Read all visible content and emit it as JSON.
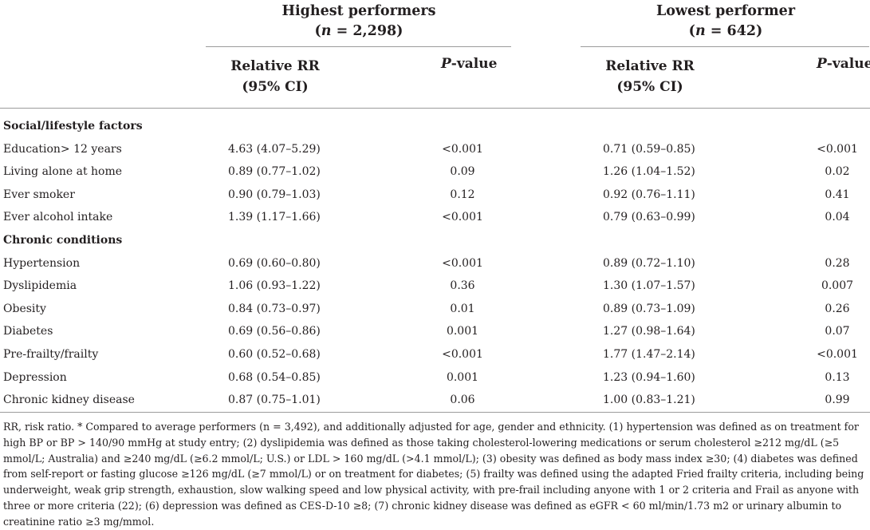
{
  "groups": [
    {
      "line1": "Highest performers",
      "n_pre": "(",
      "n_var": "n",
      "n_post": " = 2,298)"
    },
    {
      "line1": "Lowest performer",
      "n_pre": "(",
      "n_var": "n",
      "n_post": " = 642)"
    }
  ],
  "subheaders": {
    "rr_line1": "Relative RR",
    "rr_line2": "(95% CI)",
    "p_italic": "P",
    "p_rest": "-value"
  },
  "sections": [
    {
      "title": "Social/lifestyle factors",
      "rows": [
        {
          "label": "Education> 12 years",
          "hp_rr": "4.63 (4.07–5.29)",
          "hp_p": "<0.001",
          "lp_rr": "0.71 (0.59–0.85)",
          "lp_p": "<0.001"
        },
        {
          "label": "Living alone at home",
          "hp_rr": "0.89 (0.77–1.02)",
          "hp_p": "0.09",
          "lp_rr": "1.26 (1.04–1.52)",
          "lp_p": "0.02"
        },
        {
          "label": "Ever smoker",
          "hp_rr": "0.90 (0.79–1.03)",
          "hp_p": "0.12",
          "lp_rr": "0.92 (0.76–1.11)",
          "lp_p": "0.41"
        },
        {
          "label": "Ever alcohol intake",
          "hp_rr": "1.39 (1.17–1.66)",
          "hp_p": "<0.001",
          "lp_rr": "0.79 (0.63–0.99)",
          "lp_p": "0.04"
        }
      ]
    },
    {
      "title": "Chronic conditions",
      "rows": [
        {
          "label": "Hypertension",
          "hp_rr": "0.69 (0.60–0.80)",
          "hp_p": "<0.001",
          "lp_rr": "0.89 (0.72–1.10)",
          "lp_p": "0.28"
        },
        {
          "label": "Dyslipidemia",
          "hp_rr": "1.06 (0.93–1.22)",
          "hp_p": "0.36",
          "lp_rr": "1.30 (1.07–1.57)",
          "lp_p": "0.007"
        },
        {
          "label": "Obesity",
          "hp_rr": "0.84 (0.73–0.97)",
          "hp_p": "0.01",
          "lp_rr": "0.89 (0.73–1.09)",
          "lp_p": "0.26"
        },
        {
          "label": "Diabetes",
          "hp_rr": "0.69 (0.56–0.86)",
          "hp_p": "0.001",
          "lp_rr": "1.27 (0.98–1.64)",
          "lp_p": "0.07"
        },
        {
          "label": "Pre-frailty/frailty",
          "hp_rr": "0.60 (0.52–0.68)",
          "hp_p": "<0.001",
          "lp_rr": "1.77 (1.47–2.14)",
          "lp_p": "<0.001"
        },
        {
          "label": "Depression",
          "hp_rr": "0.68 (0.54–0.85)",
          "hp_p": "0.001",
          "lp_rr": "1.23 (0.94–1.60)",
          "lp_p": "0.13"
        },
        {
          "label": "Chronic kidney disease",
          "hp_rr": "0.87 (0.75–1.01)",
          "hp_p": "0.06",
          "lp_rr": "1.00 (0.83–1.21)",
          "lp_p": "0.99"
        }
      ]
    }
  ],
  "footnote": "RR, risk ratio. * Compared to average performers (n = 3,492), and additionally adjusted for age, gender and ethnicity. (1) hypertension was defined as on treatment for high BP or BP > 140/90 mmHg at study entry; (2) dyslipidemia was defined as those taking cholesterol-lowering medications or serum cholesterol ≥212 mg/dL (≥5 mmol/L; Australia) and ≥240 mg/dL (≥6.2 mmol/L; U.S.) or LDL > 160 mg/dL (>4.1 mmol/L); (3) obesity was defined as body mass index ≥30; (4) diabetes was defined from self-report or fasting glucose ≥126 mg/dL (≥7 mmol/L) or on treatment for diabetes; (5) frailty was defined using the adapted Fried frailty criteria, including being underweight, weak grip strength, exhaustion, slow walking speed and low physical activity, with pre-frail including anyone with 1 or 2 criteria and Frail as anyone with three or more criteria (22); (6) depression was defined as CES-D-10 ≥8; (7) chronic kidney disease was defined as eGFR < 60 ml/min/1.73 m2 or urinary albumin to creatinine ratio ≥3 mg/mmol."
}
